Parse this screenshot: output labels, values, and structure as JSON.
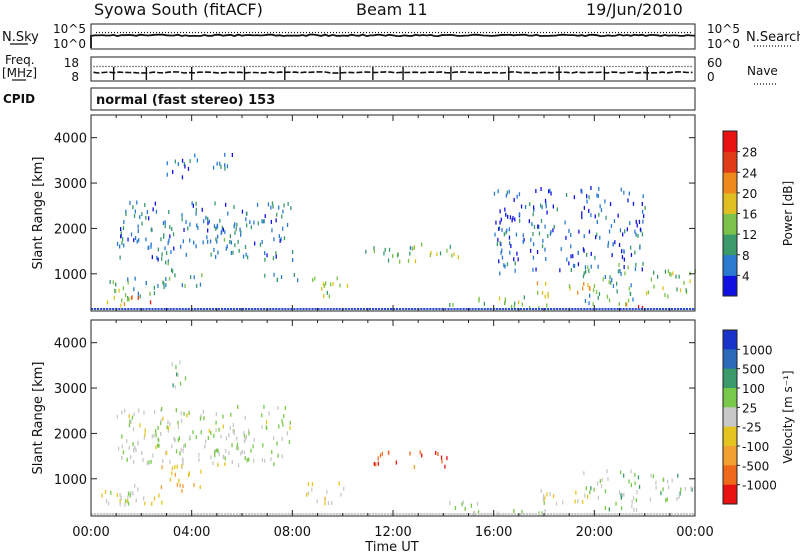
{
  "header": {
    "station": "Syowa South (fitACF)",
    "beam": "Beam 11",
    "date": "19/Jun/2010"
  },
  "top_panels": {
    "nsky_label": "N.Sky",
    "nsky_ticks": [
      "10^5",
      "10^0"
    ],
    "nsearch_label": "N.Search",
    "freq_label": "Freq.",
    "freq_unit": "[MHz]",
    "freq_ticks": [
      "18",
      "8"
    ],
    "nave_label": "Nave",
    "nave_ticks": [
      "60",
      "0"
    ],
    "cpid_label": "CPID",
    "cpid_text": "normal (fast stereo) 153"
  },
  "colorbars": {
    "power": {
      "label": "Power [dB]",
      "ticks": [
        "4",
        "8",
        "12",
        "16",
        "20",
        "24",
        "28"
      ],
      "colors": [
        "#1010e0",
        "#2a7bd0",
        "#3a9a6a",
        "#7cc24a",
        "#e0c020",
        "#ee8a1c",
        "#e03a16",
        "#e81010"
      ]
    },
    "velocity": {
      "label": "Velocity [m s⁻¹]",
      "ticks": [
        "1000",
        "500",
        "100",
        "25",
        "-25",
        "-100",
        "-500",
        "-1000"
      ],
      "colors": [
        "#1a33c8",
        "#2a6ab8",
        "#3a9a6a",
        "#78c84a",
        "#c8c8c8",
        "#e6c420",
        "#f2a030",
        "#ee6a1a",
        "#e81010"
      ]
    }
  },
  "chart_data": [
    {
      "type": "line",
      "title": "",
      "xlabel": "Time UT",
      "ylabel": "",
      "xlim": [
        0,
        24
      ],
      "series": [
        {
          "name": "N.Sky",
          "style": "solid",
          "value_text": "10^5"
        },
        {
          "name": "N.Search",
          "style": "dotted",
          "value_text": "10^5"
        }
      ]
    },
    {
      "type": "line",
      "xlim": [
        0,
        24
      ],
      "series": [
        {
          "name": "Freq.",
          "style": "dashed",
          "level_mhz": 10
        },
        {
          "name": "Nave",
          "style": "dotted",
          "level": 15
        }
      ]
    },
    {
      "type": "heatmap",
      "quantity": "Power [dB]",
      "ylabel": "Slant Range [km]",
      "ylim": [
        180,
        4500
      ],
      "y_ticks": [
        1000,
        2000,
        3000,
        4000
      ],
      "clim": [
        0,
        30
      ],
      "regions": [
        {
          "t": [
            0.4,
            2.8
          ],
          "r": [
            420,
            900
          ],
          "level": 10
        },
        {
          "t": [
            0.6,
            1.6
          ],
          "r": [
            300,
            700
          ],
          "level": 18
        },
        {
          "t": [
            1.6,
            2.4
          ],
          "r": [
            350,
            550
          ],
          "level": 26
        },
        {
          "t": [
            2.6,
            4.4
          ],
          "r": [
            700,
            1300
          ],
          "level": 9
        },
        {
          "t": [
            3.0,
            3.8
          ],
          "r": [
            2950,
            3600
          ],
          "level": 6
        },
        {
          "t": [
            3.6,
            5.6
          ],
          "r": [
            3300,
            3650
          ],
          "level": 5
        },
        {
          "t": [
            4.6,
            6.2
          ],
          "r": [
            1300,
            2100
          ],
          "level": 8
        },
        {
          "t": [
            6.5,
            8.5
          ],
          "r": [
            850,
            1050
          ],
          "level": 7
        },
        {
          "t": [
            8.5,
            10.2
          ],
          "r": [
            450,
            900
          ],
          "level": 12
        },
        {
          "t": [
            10.8,
            12.8
          ],
          "r": [
            1250,
            1600
          ],
          "level": 10
        },
        {
          "t": [
            12.5,
            14.6
          ],
          "r": [
            1250,
            1650
          ],
          "level": 14
        },
        {
          "t": [
            14.2,
            18.2
          ],
          "r": [
            230,
            480
          ],
          "level": 12
        },
        {
          "t": [
            17.5,
            19.8
          ],
          "r": [
            450,
            800
          ],
          "level": 18
        },
        {
          "t": [
            19.5,
            21.8
          ],
          "r": [
            300,
            1200
          ],
          "level": 10
        },
        {
          "t": [
            21.0,
            21.9
          ],
          "r": [
            230,
            400
          ],
          "level": 26
        },
        {
          "t": [
            22.0,
            24.0
          ],
          "r": [
            450,
            1100
          ],
          "level": 14
        },
        {
          "t": [
            1.0,
            8.0
          ],
          "r": [
            1300,
            2600
          ],
          "level": 6
        },
        {
          "t": [
            16.0,
            22.0
          ],
          "r": [
            1000,
            2900
          ],
          "level": 5
        }
      ]
    },
    {
      "type": "heatmap",
      "quantity": "Velocity [m s⁻¹]",
      "ylabel": "Slant Range [km]",
      "xlabel": "Time UT",
      "ylim": [
        180,
        4500
      ],
      "y_ticks": [
        1000,
        2000,
        3000,
        4000
      ],
      "x_ticks": [
        "00:00",
        "04:00",
        "08:00",
        "12:00",
        "16:00",
        "20:00",
        "00:00"
      ],
      "clim": [
        -1000,
        1000
      ],
      "regions": [
        {
          "t": [
            0.4,
            2.8
          ],
          "r": [
            420,
            900
          ],
          "level": -100
        },
        {
          "t": [
            0.6,
            1.6
          ],
          "r": [
            300,
            700
          ],
          "level": 100
        },
        {
          "t": [
            2.6,
            4.4
          ],
          "r": [
            700,
            1300
          ],
          "level": -300
        },
        {
          "t": [
            3.0,
            3.8
          ],
          "r": [
            2950,
            3600
          ],
          "level": 200
        },
        {
          "t": [
            4.6,
            6.2
          ],
          "r": [
            1300,
            2100
          ],
          "level": 100
        },
        {
          "t": [
            8.5,
            10.2
          ],
          "r": [
            450,
            900
          ],
          "level": -150
        },
        {
          "t": [
            11.2,
            14.2
          ],
          "r": [
            1250,
            1600
          ],
          "level": -700
        },
        {
          "t": [
            14.2,
            18.2
          ],
          "r": [
            230,
            480
          ],
          "level": 40
        },
        {
          "t": [
            17.5,
            19.8
          ],
          "r": [
            450,
            800
          ],
          "level": -100
        },
        {
          "t": [
            19.5,
            21.8
          ],
          "r": [
            300,
            1200
          ],
          "level": 200
        },
        {
          "t": [
            22.0,
            24.0
          ],
          "r": [
            450,
            1100
          ],
          "level": 150
        },
        {
          "t": [
            1.0,
            8.0
          ],
          "r": [
            1300,
            2600
          ],
          "level": 50
        }
      ]
    }
  ]
}
